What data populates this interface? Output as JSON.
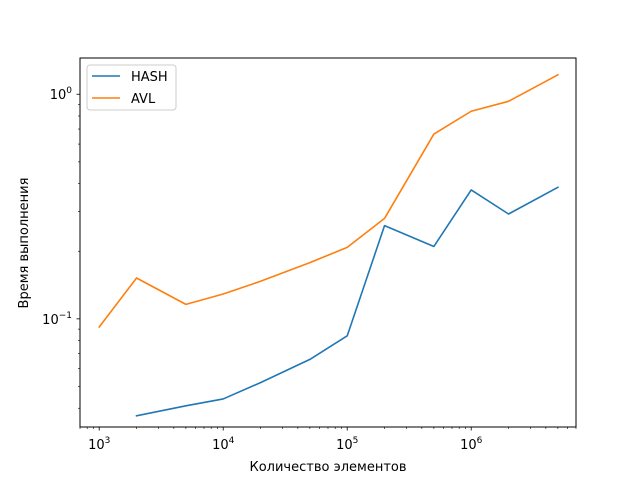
{
  "chart_data": {
    "type": "line",
    "xlabel": "Количество элементов",
    "ylabel": "Время выполнения",
    "xscale": "log",
    "yscale": "log",
    "xlim": [
      700,
      7000000
    ],
    "ylim": [
      0.033,
      1.45
    ],
    "x_major_ticks": [
      {
        "value": 1000,
        "base": "10",
        "exp": "3"
      },
      {
        "value": 10000,
        "base": "10",
        "exp": "4"
      },
      {
        "value": 100000,
        "base": "10",
        "exp": "5"
      },
      {
        "value": 1000000,
        "base": "10",
        "exp": "6"
      }
    ],
    "y_major_ticks": [
      {
        "value": 0.1,
        "base": "10",
        "exp": "−1"
      },
      {
        "value": 1,
        "base": "10",
        "exp": "0"
      }
    ],
    "grid": false,
    "legend_position": "top-left",
    "series": [
      {
        "name": "HASH",
        "color": "#1f77b4",
        "x": [
          2000,
          5000,
          10000,
          20000,
          50000,
          100000,
          200000,
          500000,
          1000000,
          2000000,
          5000000
        ],
        "y": [
          0.037,
          0.041,
          0.044,
          0.052,
          0.066,
          0.084,
          0.26,
          0.21,
          0.375,
          0.293,
          0.385
        ]
      },
      {
        "name": "AVL",
        "color": "#ff7f0e",
        "x": [
          1000,
          2000,
          5000,
          10000,
          20000,
          50000,
          100000,
          200000,
          500000,
          1000000,
          2000000,
          5000000
        ],
        "y": [
          0.092,
          0.152,
          0.116,
          0.129,
          0.147,
          0.178,
          0.208,
          0.28,
          0.665,
          0.84,
          0.93,
          1.22
        ]
      }
    ]
  }
}
